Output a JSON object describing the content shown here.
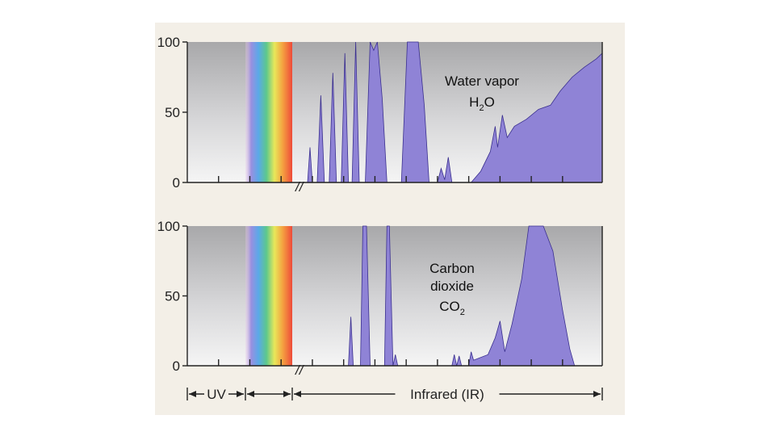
{
  "chart_data": [
    {
      "type": "area",
      "title": "",
      "ylim": [
        0,
        100
      ],
      "yticks": [
        "0",
        "50",
        "100"
      ],
      "annotation_lines": [
        "Water vapor",
        "H",
        "2",
        "O"
      ],
      "colors": {
        "fill": "#8f83d6",
        "stroke": "#3a2f8f"
      },
      "grid": false,
      "series": [
        {
          "values": [
            [
              0,
              0
            ],
            [
              1.0,
              0
            ],
            [
              1.02,
              25
            ],
            [
              1.04,
              0
            ],
            [
              1.08,
              0
            ],
            [
              1.11,
              62
            ],
            [
              1.14,
              0
            ],
            [
              1.18,
              0
            ],
            [
              1.21,
              78
            ],
            [
              1.24,
              0
            ],
            [
              1.28,
              0
            ],
            [
              1.31,
              92
            ],
            [
              1.34,
              0
            ],
            [
              1.37,
              0
            ],
            [
              1.4,
              100
            ],
            [
              1.43,
              0
            ],
            [
              1.48,
              0
            ],
            [
              1.52,
              100
            ],
            [
              1.55,
              94
            ],
            [
              1.58,
              100
            ],
            [
              1.62,
              60
            ],
            [
              1.66,
              0
            ],
            [
              1.78,
              0
            ],
            [
              1.83,
              100
            ],
            [
              1.92,
              100
            ],
            [
              1.97,
              55
            ],
            [
              2.01,
              0
            ],
            [
              2.08,
              0
            ],
            [
              2.11,
              10
            ],
            [
              2.14,
              2
            ],
            [
              2.17,
              18
            ],
            [
              2.2,
              0
            ],
            [
              2.36,
              0
            ],
            [
              2.44,
              8
            ],
            [
              2.52,
              22
            ],
            [
              2.56,
              40
            ],
            [
              2.58,
              25
            ],
            [
              2.62,
              48
            ],
            [
              2.66,
              32
            ],
            [
              2.72,
              40
            ],
            [
              2.82,
              45
            ],
            [
              2.92,
              52
            ],
            [
              3.02,
              55
            ],
            [
              3.1,
              65
            ],
            [
              3.2,
              75
            ],
            [
              3.3,
              82
            ],
            [
              3.4,
              88
            ],
            [
              3.45,
              92
            ],
            [
              3.45,
              0
            ]
          ]
        }
      ]
    },
    {
      "type": "area",
      "title": "",
      "ylim": [
        0,
        100
      ],
      "yticks": [
        "0",
        "50",
        "100"
      ],
      "annotation_lines": [
        "Carbon",
        "dioxide",
        "CO",
        "2"
      ],
      "colors": {
        "fill": "#8f83d6",
        "stroke": "#3a2f8f"
      },
      "grid": false,
      "series": [
        {
          "values": [
            [
              0,
              0
            ],
            [
              1.34,
              0
            ],
            [
              1.36,
              35
            ],
            [
              1.38,
              0
            ],
            [
              1.44,
              0
            ],
            [
              1.46,
              100
            ],
            [
              1.49,
              100
            ],
            [
              1.52,
              0
            ],
            [
              1.64,
              0
            ],
            [
              1.66,
              100
            ],
            [
              1.68,
              100
            ],
            [
              1.71,
              0
            ],
            [
              1.73,
              8
            ],
            [
              1.75,
              0
            ],
            [
              2.2,
              0
            ],
            [
              2.22,
              8
            ],
            [
              2.24,
              0
            ],
            [
              2.26,
              7
            ],
            [
              2.28,
              0
            ],
            [
              2.34,
              0
            ],
            [
              2.36,
              10
            ],
            [
              2.38,
              4
            ],
            [
              2.5,
              8
            ],
            [
              2.56,
              20
            ],
            [
              2.6,
              32
            ],
            [
              2.64,
              10
            ],
            [
              2.7,
              30
            ],
            [
              2.78,
              62
            ],
            [
              2.84,
              100
            ],
            [
              2.96,
              100
            ],
            [
              3.04,
              82
            ],
            [
              3.12,
              40
            ],
            [
              3.18,
              12
            ],
            [
              3.22,
              0
            ],
            [
              3.45,
              0
            ]
          ]
        }
      ]
    }
  ],
  "x_scale": {
    "regions": [
      "UV",
      "",
      "Infrared (IR)"
    ],
    "break_mark": "//"
  }
}
